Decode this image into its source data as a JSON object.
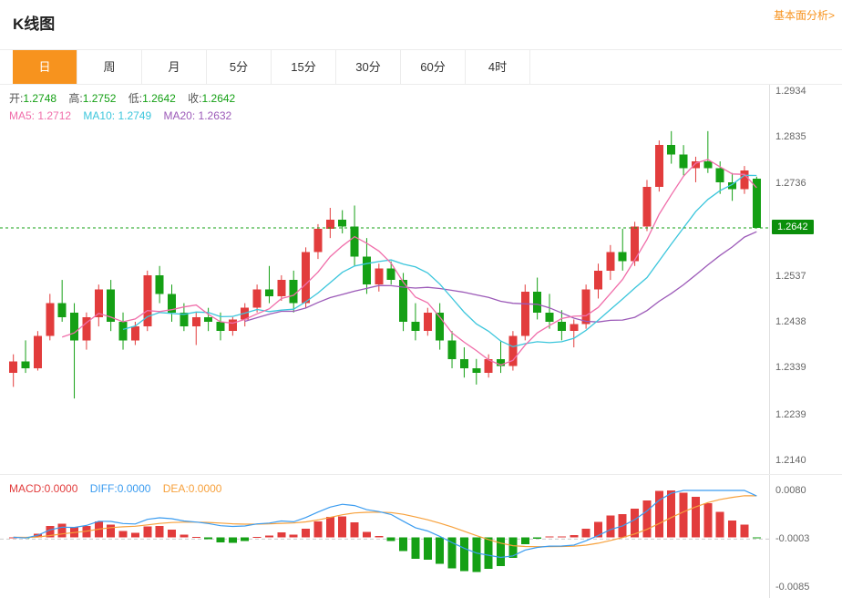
{
  "header": {
    "title": "K线图",
    "analysis_link": "基本面分析>"
  },
  "tabs": [
    {
      "name": "tab-day",
      "label": "日",
      "active": true
    },
    {
      "name": "tab-week",
      "label": "周",
      "active": false
    },
    {
      "name": "tab-month",
      "label": "月",
      "active": false
    },
    {
      "name": "tab-5min",
      "label": "5分",
      "active": false
    },
    {
      "name": "tab-15min",
      "label": "15分",
      "active": false
    },
    {
      "name": "tab-30min",
      "label": "30分",
      "active": false
    },
    {
      "name": "tab-60min",
      "label": "60分",
      "active": false
    },
    {
      "name": "tab-4hour",
      "label": "4时",
      "active": false
    }
  ],
  "main_legend": {
    "open_label": "开:",
    "open_value": "1.2748",
    "high_label": "高:",
    "high_value": "1.2752",
    "low_label": "低:",
    "low_value": "1.2642",
    "close_label": "收:",
    "close_value": "1.2642"
  },
  "ma_legend": {
    "ma5_label": "MA5:",
    "ma5_value": "1.2712",
    "ma10_label": "MA10:",
    "ma10_value": "1.2749",
    "ma20_label": "MA20:",
    "ma20_value": "1.2632"
  },
  "y_axis": [
    "1.2934",
    "1.2835",
    "1.2736",
    "1.2537",
    "1.2438",
    "1.2339",
    "1.2239",
    "1.2140"
  ],
  "price_tag": "1.2642",
  "macd_legend": {
    "macd_label": "MACD:",
    "macd_value": "0.0000",
    "diff_label": "DIFF:",
    "diff_value": "0.0000",
    "dea_label": "DEA:",
    "dea_value": "0.0000"
  },
  "macd_axis": [
    "0.0080",
    "-0.0003",
    "-0.0085"
  ],
  "colors": {
    "accent": "#f7931e",
    "up": "#e23c3c",
    "down": "#15a015",
    "ma5": "#f06eaa",
    "ma10": "#3cc6dc",
    "ma20": "#9c5ab8",
    "diff": "#3b9cf0",
    "dea": "#f7a13c",
    "tag_bg": "#0b8f0b",
    "axis_text": "#666666"
  },
  "chart_data": {
    "type": "candlestick",
    "title": "K线图",
    "interval": "日",
    "y_range": [
      1.214,
      1.2934
    ],
    "y_ticks": [
      1.2934,
      1.2835,
      1.2736,
      1.2537,
      1.2438,
      1.2339,
      1.2239,
      1.214
    ],
    "price_line": 1.2642,
    "last": {
      "open": 1.2748,
      "high": 1.2752,
      "low": 1.2642,
      "close": 1.2642
    },
    "ma": {
      "MA5": 1.2712,
      "MA10": 1.2749,
      "MA20": 1.2632
    },
    "macd_panel": {
      "range": [
        -0.0085,
        0.008
      ],
      "baseline": -0.0003,
      "macd": 0.0,
      "diff": 0.0,
      "dea": 0.0
    },
    "ohlc": [
      [
        1.233,
        1.237,
        1.23,
        1.2355
      ],
      [
        1.2355,
        1.24,
        1.233,
        1.234
      ],
      [
        1.234,
        1.242,
        1.2335,
        1.241
      ],
      [
        1.241,
        1.25,
        1.24,
        1.248
      ],
      [
        1.248,
        1.253,
        1.244,
        1.245
      ],
      [
        1.246,
        1.248,
        1.2275,
        1.24
      ],
      [
        1.24,
        1.246,
        1.238,
        1.245
      ],
      [
        1.245,
        1.252,
        1.243,
        1.251
      ],
      [
        1.251,
        1.253,
        1.242,
        1.244
      ],
      [
        1.244,
        1.246,
        1.238,
        1.24
      ],
      [
        1.24,
        1.244,
        1.239,
        1.243
      ],
      [
        1.243,
        1.255,
        1.242,
        1.254
      ],
      [
        1.254,
        1.256,
        1.248,
        1.25
      ],
      [
        1.25,
        1.252,
        1.244,
        1.246
      ],
      [
        1.246,
        1.248,
        1.242,
        1.243
      ],
      [
        1.243,
        1.246,
        1.239,
        1.245
      ],
      [
        1.245,
        1.247,
        1.242,
        1.244
      ],
      [
        1.244,
        1.246,
        1.24,
        1.242
      ],
      [
        1.242,
        1.245,
        1.241,
        1.2445
      ],
      [
        1.2445,
        1.248,
        1.243,
        1.247
      ],
      [
        1.247,
        1.252,
        1.246,
        1.251
      ],
      [
        1.251,
        1.256,
        1.248,
        1.2495
      ],
      [
        1.2495,
        1.254,
        1.2485,
        1.253
      ],
      [
        1.253,
        1.255,
        1.246,
        1.248
      ],
      [
        1.248,
        1.26,
        1.247,
        1.259
      ],
      [
        1.259,
        1.265,
        1.2575,
        1.264
      ],
      [
        1.264,
        1.2685,
        1.262,
        1.266
      ],
      [
        1.266,
        1.268,
        1.263,
        1.2645
      ],
      [
        1.2645,
        1.269,
        1.256,
        1.258
      ],
      [
        1.258,
        1.262,
        1.25,
        1.252
      ],
      [
        1.252,
        1.2565,
        1.2505,
        1.2555
      ],
      [
        1.2555,
        1.257,
        1.252,
        1.253
      ],
      [
        1.253,
        1.2545,
        1.242,
        1.244
      ],
      [
        1.244,
        1.248,
        1.24,
        1.242
      ],
      [
        1.242,
        1.247,
        1.241,
        1.246
      ],
      [
        1.246,
        1.248,
        1.238,
        1.24
      ],
      [
        1.24,
        1.242,
        1.234,
        1.236
      ],
      [
        1.236,
        1.2385,
        1.232,
        1.234
      ],
      [
        1.234,
        1.236,
        1.2305,
        1.233
      ],
      [
        1.233,
        1.237,
        1.232,
        1.236
      ],
      [
        1.236,
        1.24,
        1.233,
        1.2345
      ],
      [
        1.2345,
        1.242,
        1.2335,
        1.241
      ],
      [
        1.241,
        1.252,
        1.24,
        1.2505
      ],
      [
        1.2505,
        1.2535,
        1.2445,
        1.246
      ],
      [
        1.246,
        1.25,
        1.2425,
        1.244
      ],
      [
        1.244,
        1.2465,
        1.24,
        1.242
      ],
      [
        1.242,
        1.2445,
        1.2385,
        1.2435
      ],
      [
        1.2435,
        1.252,
        1.2425,
        1.251
      ],
      [
        1.251,
        1.2565,
        1.249,
        1.255
      ],
      [
        1.255,
        1.2605,
        1.253,
        1.259
      ],
      [
        1.259,
        1.264,
        1.255,
        1.257
      ],
      [
        1.257,
        1.2655,
        1.256,
        1.2645
      ],
      [
        1.2645,
        1.2745,
        1.2635,
        1.273
      ],
      [
        1.273,
        1.283,
        1.272,
        1.282
      ],
      [
        1.282,
        1.285,
        1.278,
        1.28
      ],
      [
        1.28,
        1.282,
        1.2755,
        1.277
      ],
      [
        1.277,
        1.2795,
        1.274,
        1.2785
      ],
      [
        1.2785,
        1.285,
        1.276,
        1.277
      ],
      [
        1.277,
        1.2785,
        1.2715,
        1.274
      ],
      [
        1.274,
        1.276,
        1.27,
        1.2725
      ],
      [
        1.2725,
        1.2775,
        1.2715,
        1.2765
      ],
      [
        1.2748,
        1.2752,
        1.2642,
        1.2642
      ]
    ]
  }
}
